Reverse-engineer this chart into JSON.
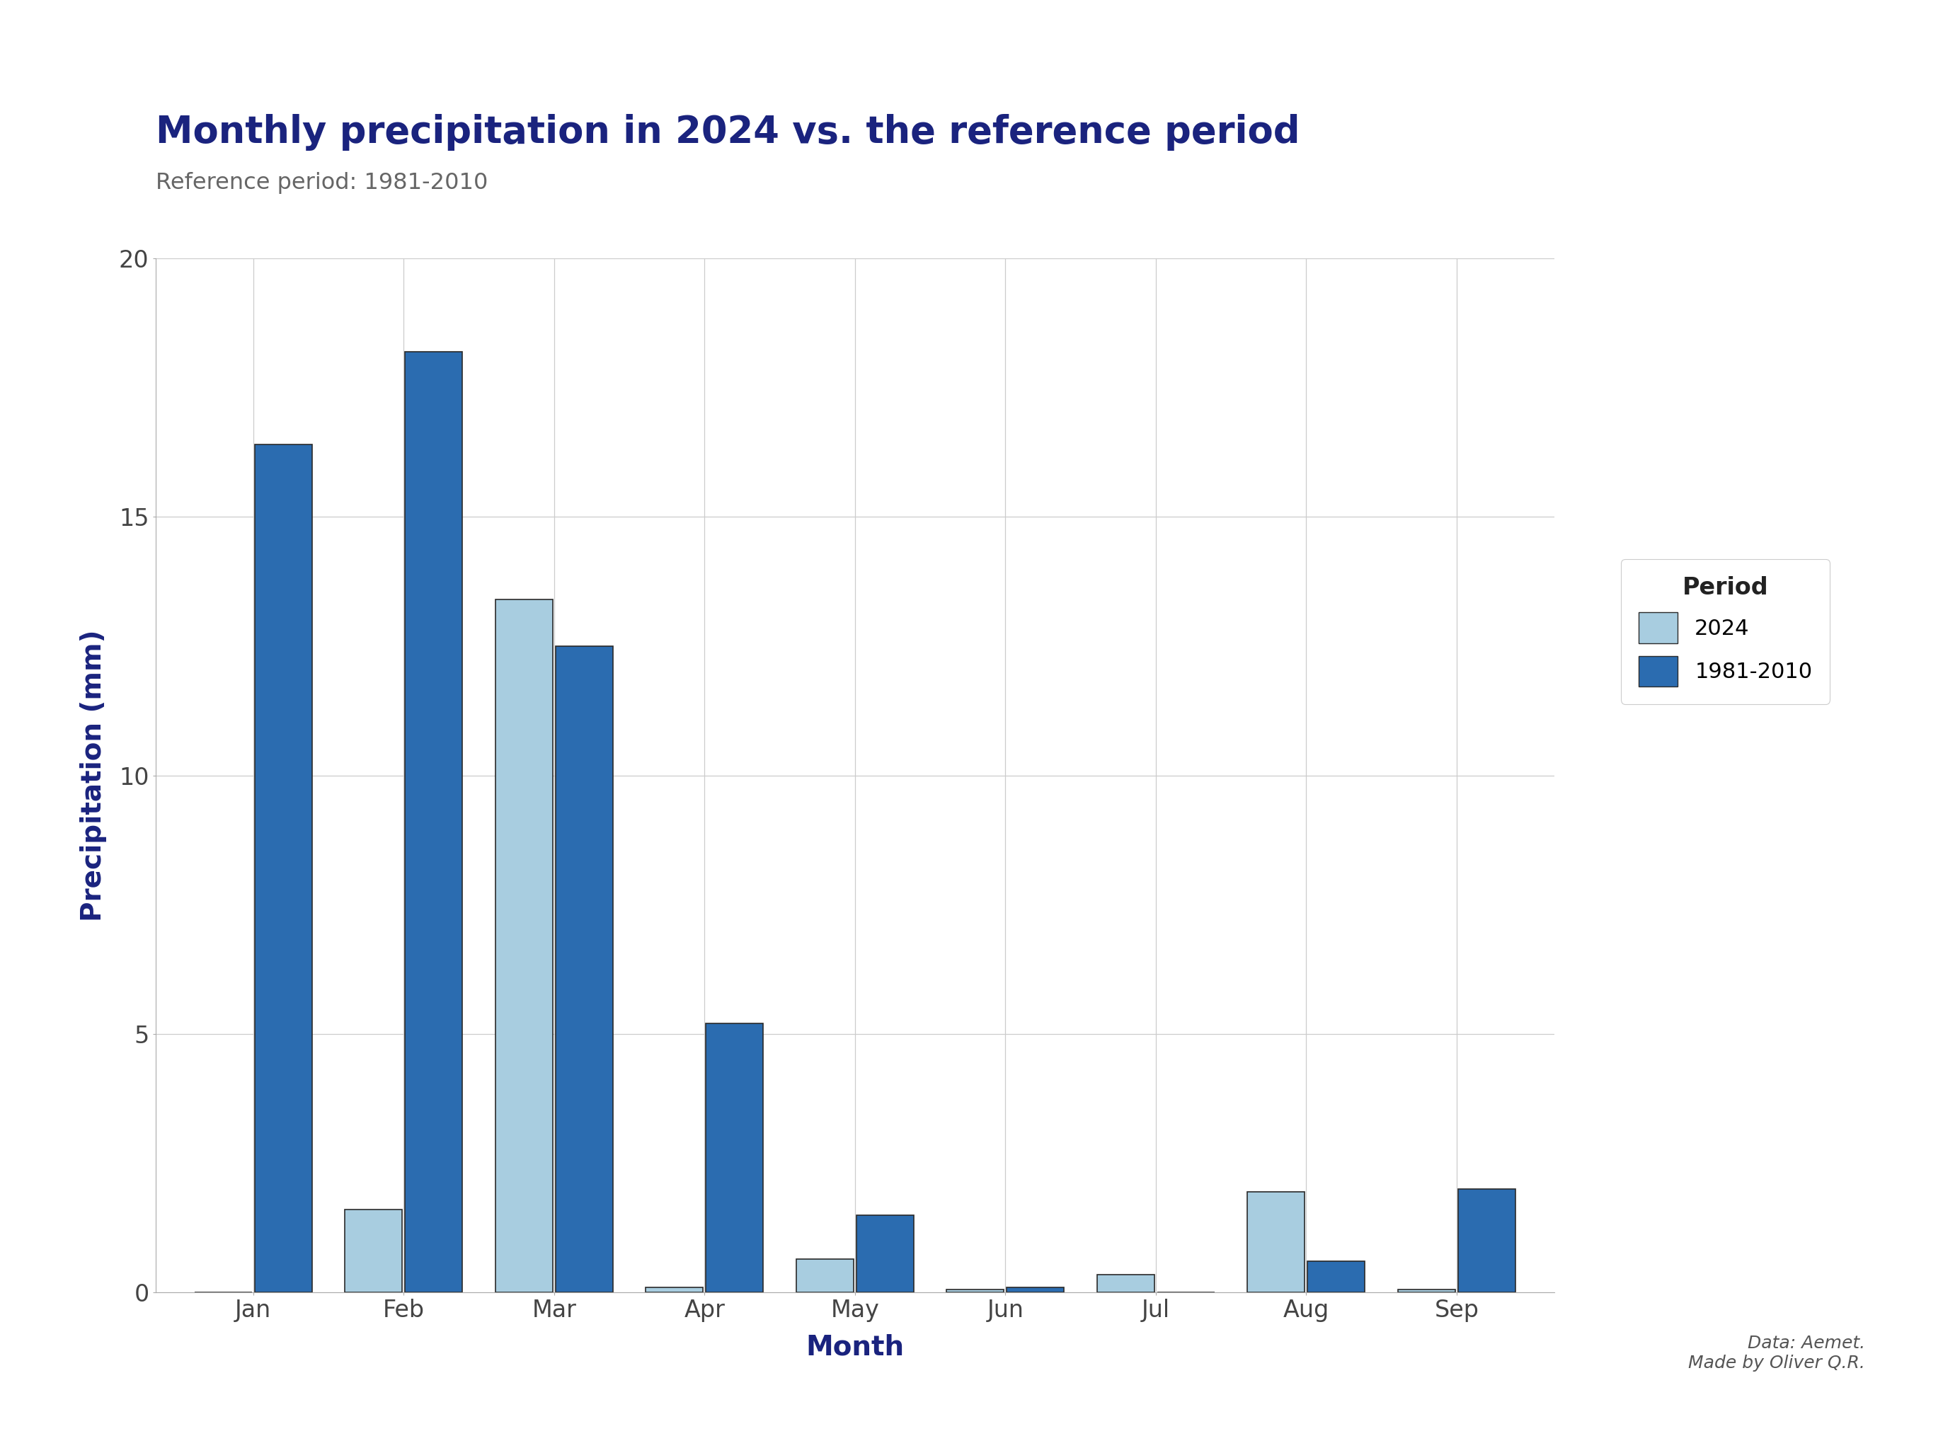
{
  "title": "Monthly precipitation in 2024 vs. the reference period",
  "subtitle": "Reference period: 1981-2010",
  "xlabel": "Month",
  "ylabel": "Precipitation (mm)",
  "months": [
    "Jan",
    "Feb",
    "Mar",
    "Apr",
    "May",
    "Jun",
    "Jul",
    "Aug",
    "Sep"
  ],
  "values_2024": [
    0.0,
    1.6,
    13.4,
    0.1,
    0.65,
    0.05,
    0.35,
    1.95,
    0.05
  ],
  "values_ref": [
    16.4,
    18.2,
    12.5,
    5.2,
    1.5,
    0.1,
    0.0,
    0.6,
    2.0
  ],
  "color_2024": "#a8cde0",
  "color_ref": "#2b6cb0",
  "bar_edge_color": "#2a2a2a",
  "ylim": [
    0,
    20
  ],
  "yticks": [
    0,
    5,
    10,
    15,
    20
  ],
  "title_color": "#1a237e",
  "subtitle_color": "#666666",
  "axis_label_color": "#1a237e",
  "tick_color": "#444444",
  "legend_title": "Period",
  "legend_labels": [
    "2024",
    "1981-2010"
  ],
  "annotation": "Data: Aemet.\nMade by Oliver Q.R.",
  "background_color": "#ffffff",
  "grid_color": "#cccccc"
}
